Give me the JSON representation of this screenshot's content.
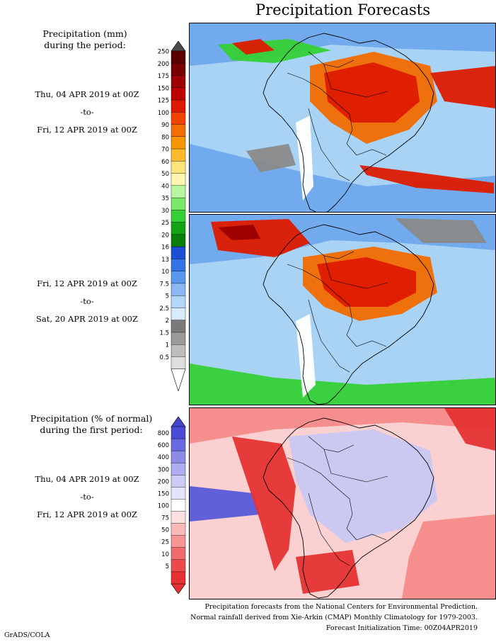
{
  "title": "Precipitation Forecasts",
  "panel1": {
    "label_line1": "Precipitation (mm)",
    "label_line2": "during the period:",
    "start": "Thu, 04 APR 2019 at 00Z",
    "sep": "-to-",
    "end": "Fri, 12 APR 2019 at 00Z"
  },
  "panel2": {
    "start": "Fri, 12 APR 2019 at 00Z",
    "sep": "-to-",
    "end": "Sat, 20 APR 2019 at 00Z"
  },
  "panel3": {
    "label_line1": "Precipitation (% of normal)",
    "label_line2": "during the first period:",
    "start": "Thu, 04 APR 2019 at 00Z",
    "sep": "-to-",
    "end": "Fri, 12 APR 2019 at 00Z"
  },
  "mm_scale": {
    "labels": [
      "250",
      "200",
      "175",
      "150",
      "125",
      "100",
      "90",
      "80",
      "70",
      "60",
      "50",
      "40",
      "35",
      "30",
      "25",
      "20",
      "16",
      "13",
      "10",
      "7.5",
      "5",
      "2.5",
      "2",
      "1.5",
      "1",
      "0.5"
    ],
    "colors": [
      "#5a0000",
      "#7a0000",
      "#9c0000",
      "#bd0000",
      "#dd1a00",
      "#f24400",
      "#f26c00",
      "#f79600",
      "#fbbb2a",
      "#fde57a",
      "#fff4b0",
      "#b8f5a0",
      "#7be86a",
      "#35d035",
      "#14a514",
      "#0b7d0b",
      "#1a4fd6",
      "#3274e6",
      "#5a97ee",
      "#8ab8f4",
      "#b4d6f8",
      "#d9ecfb",
      "#7a7a7a",
      "#9a9a9a",
      "#bdbdbd",
      "#dedede",
      "#ffffff"
    ],
    "top_color": "#4a4a4a"
  },
  "pct_scale": {
    "labels": [
      "800",
      "600",
      "400",
      "300",
      "200",
      "150",
      "100",
      "75",
      "50",
      "25",
      "10",
      "5"
    ],
    "colors": [
      "#4a4ad6",
      "#6a6ae0",
      "#8c8ce8",
      "#adadf0",
      "#cbcbf5",
      "#e4e4fa",
      "#ffffff",
      "#fde1e1",
      "#fbbaba",
      "#f79494",
      "#f16c6c",
      "#ea4a4a",
      "#e63232"
    ],
    "top_color": "#4444cc",
    "bottom_color": "#e63232"
  },
  "map_colors": {
    "ocean_light": "#a9d3f5",
    "ocean_mid": "#6fa9ec",
    "green": "#35d035",
    "red": "#dd1a00",
    "orange": "#f26c00",
    "dark_red": "#9c0000",
    "gray": "#8a8a8a",
    "pink_light": "#fbd0d0",
    "pink": "#f58a8a",
    "red_pct": "#e63232",
    "lav": "#c8c8f3",
    "blue_pct": "#5a5ad8"
  },
  "footer": {
    "line1": "Precipitation forecasts from the National Centers for Environmental Prediction.",
    "line2": "Normal rainfall derived from Xie-Arkin (CMAP) Monthly Climatology for 1979-2003.",
    "line3": "Forecast Initialization Time: 00Z04APR2019"
  },
  "credit": "GrADS/COLA"
}
